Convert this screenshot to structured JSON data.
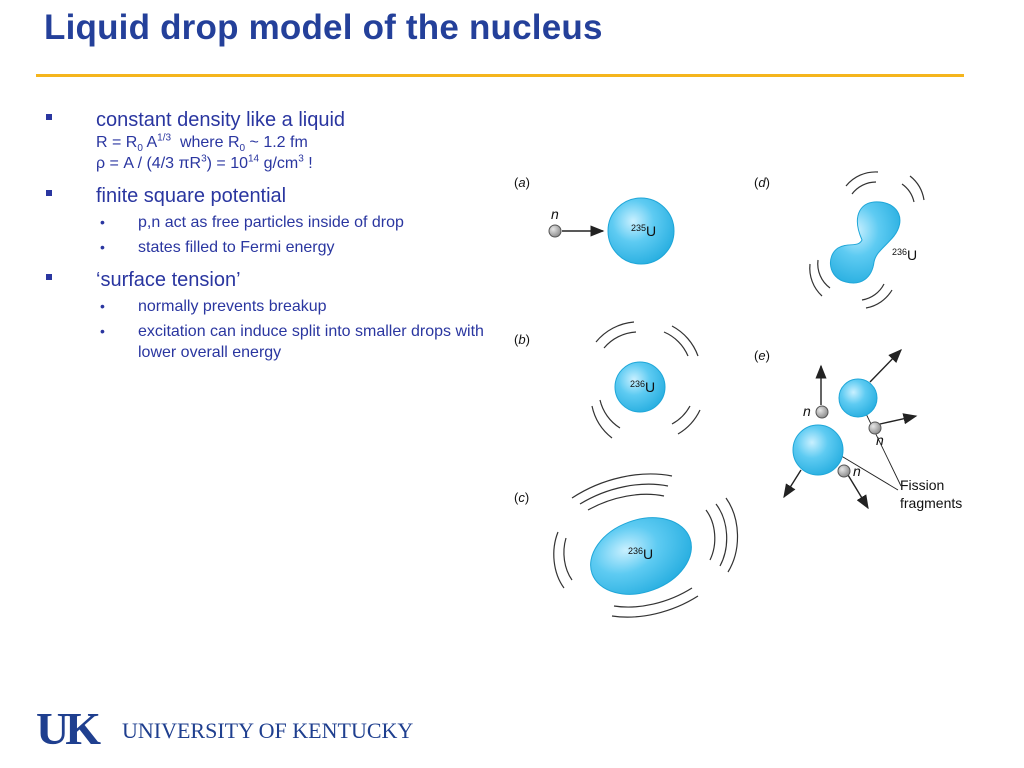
{
  "title": "Liquid drop model of the nucleus",
  "bullets": [
    {
      "text": "constant density like a liquid",
      "formula1": {
        "a": "R = R",
        "a_sub": "0",
        "b": " A",
        "b_sup": "1/3",
        "c": "  where R",
        "c_sub": "0",
        "d": " ~ 1.2 fm"
      },
      "formula2": {
        "a": "ρ = A / (4/3 πR",
        "a_sup": "3",
        "b": ") = 10",
        "b_sup": "14",
        "c": " g/cm",
        "c_sup": "3",
        "d": " !"
      }
    },
    {
      "text": "finite square potential",
      "sub": [
        "p,n act as free particles inside of drop",
        "states filled to Fermi energy"
      ]
    },
    {
      "text": "‘surface tension’",
      "sub": [
        "normally prevents breakup",
        "excitation can induce split into smaller drops with lower overall energy"
      ]
    }
  ],
  "diagram": {
    "panels": {
      "a": {
        "label_open": "(",
        "label_letter": "a",
        "label_close": ")",
        "nucleus_mass": "235",
        "nucleus_symbol": "U",
        "neutron": "n"
      },
      "b": {
        "label_open": "(",
        "label_letter": "b",
        "label_close": ")",
        "nucleus_mass": "236",
        "nucleus_symbol": "U"
      },
      "c": {
        "label_open": "(",
        "label_letter": "c",
        "label_close": ")",
        "nucleus_mass": "236",
        "nucleus_symbol": "U"
      },
      "d": {
        "label_open": "(",
        "label_letter": "d",
        "label_close": ")",
        "nucleus_mass": "236",
        "nucleus_symbol": "U"
      },
      "e": {
        "label_open": "(",
        "label_letter": "e",
        "label_close": ")",
        "neutron": "n",
        "fragments_line1": "Fission",
        "fragments_line2": "fragments"
      }
    },
    "colors": {
      "nucleus_fill": "#5ecbf2",
      "nucleus_edge": "#1ea6d8",
      "neutron_fill": "#a9a9a9"
    }
  },
  "logo": {
    "mark": "UK",
    "name": "UNIVERSITY OF KENTUCKY",
    "color": "#1f3f8f"
  }
}
